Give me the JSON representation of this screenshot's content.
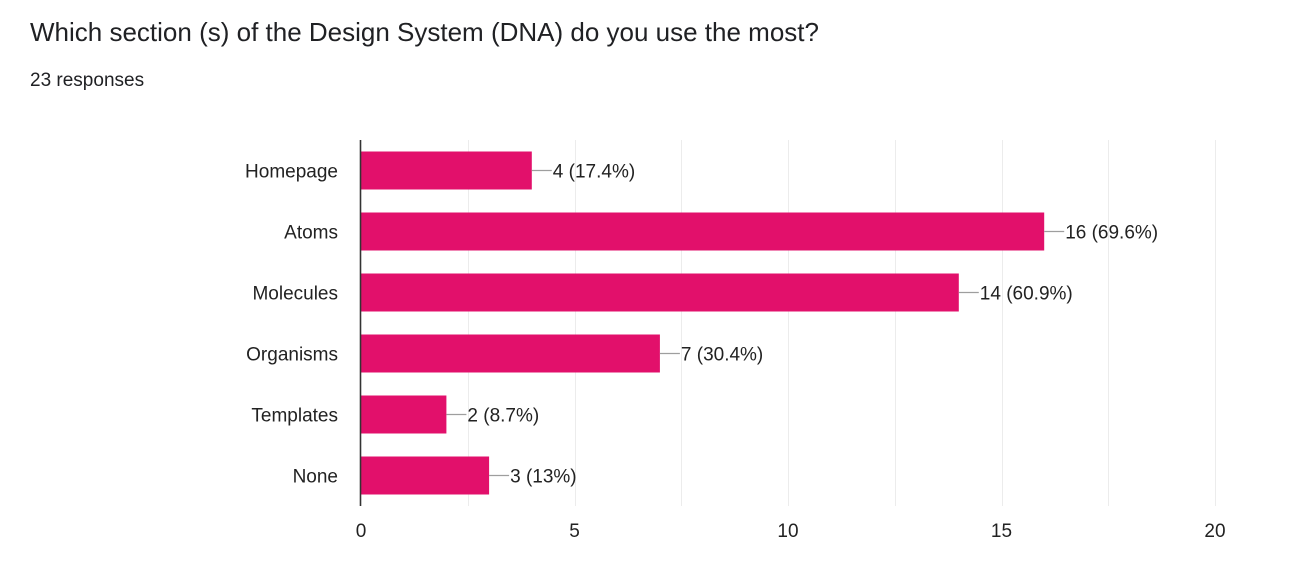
{
  "header": {
    "question": "Which section (s) of the Design System (DNA) do you use the most?",
    "responses": "23 responses"
  },
  "colors": {
    "bar": "#e2106b",
    "grid": "#ececec",
    "axis": "#333333",
    "connector": "#9e9e9e",
    "text": "#222222"
  },
  "chart_data": {
    "type": "bar",
    "orientation": "horizontal",
    "categories": [
      "Homepage",
      "Atoms",
      "Molecules",
      "Organisms",
      "Templates",
      "None"
    ],
    "values": [
      4,
      16,
      14,
      7,
      2,
      3
    ],
    "data_labels": [
      "4 (17.4%)",
      "16 (69.6%)",
      "14 (60.9%)",
      "7 (30.4%)",
      "2 (8.7%)",
      "3 (13%)"
    ],
    "xlim": [
      0,
      20
    ],
    "xticks": [
      0,
      5,
      10,
      15,
      20
    ],
    "grid": true
  }
}
